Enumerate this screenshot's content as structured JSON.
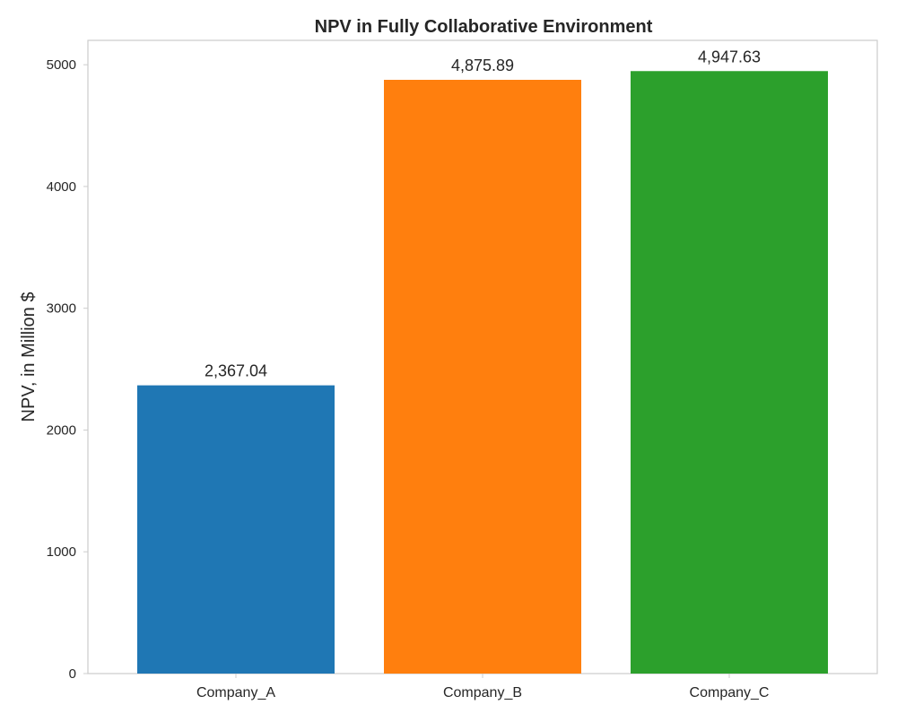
{
  "chart_data": {
    "type": "bar",
    "title": "NPV in Fully Collaborative Environment",
    "xlabel": "",
    "ylabel": "NPV, in Million $",
    "categories": [
      "Company_A",
      "Company_B",
      "Company_C"
    ],
    "values": [
      2367.04,
      4875.89,
      4947.63
    ],
    "value_labels": [
      "2,367.04",
      "4,875.89",
      "4,947.63"
    ],
    "colors": [
      "#1f77b4",
      "#ff7f0e",
      "#2ca02c"
    ],
    "ylim": [
      0,
      5200
    ],
    "yticks": [
      0,
      1000,
      2000,
      3000,
      4000,
      5000
    ],
    "grid": false,
    "legend": "none"
  }
}
